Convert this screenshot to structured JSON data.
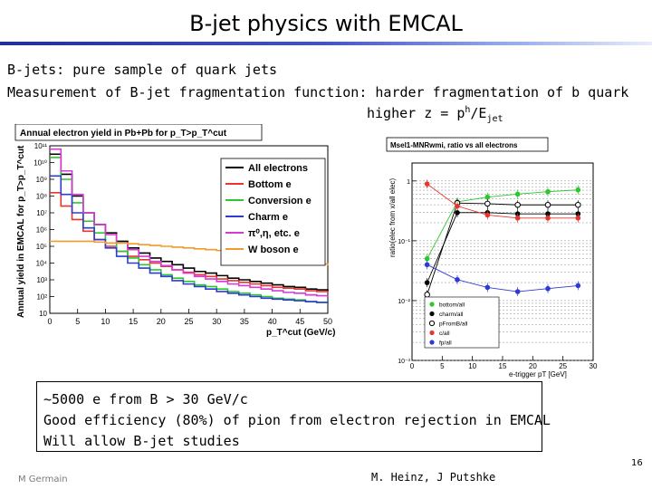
{
  "slide": {
    "title": "B-jet physics with EMCAL",
    "bullets": [
      "B-jets: pure sample of quark jets",
      "Measurement of B-jet fragmentation function: harder fragmentation of b quark"
    ],
    "formula": {
      "prefix": "higher z = p",
      "sup": "h",
      "mid": "/E",
      "sub": "jet"
    },
    "box_lines": [
      "~5000 e from B > 30 GeV/c",
      "Good efficiency (80%) of pion from electron rejection in EMCAL",
      "Will allow B-jet studies"
    ],
    "footer_left": "M Germain",
    "footer_center": "M. Heinz, J Putshke",
    "page_number": "16"
  },
  "chart_data": [
    {
      "type": "line",
      "title": "Annual electron yield in Pb+Pb for p_T>p_T^cut",
      "xlabel": "p_T^cut (GeV/c)",
      "ylabel": "Annual yield in EMCAL for p_T>p_T^cut",
      "xlim": [
        0,
        50
      ],
      "ylim_log10": [
        1,
        11
      ],
      "x_ticks": [
        "0",
        "5",
        "10",
        "15",
        "20",
        "25",
        "30",
        "35",
        "40",
        "45",
        "50"
      ],
      "y_ticks": [
        "10",
        "10²",
        "10³",
        "10⁴",
        "10⁵",
        "10⁶",
        "10⁷",
        "10⁸",
        "10⁹",
        "10¹⁰",
        "10¹¹"
      ],
      "legend_position": "top-right",
      "x": [
        0,
        2,
        4,
        6,
        8,
        10,
        12,
        14,
        16,
        18,
        20,
        22,
        24,
        26,
        28,
        30,
        32,
        34,
        36,
        38,
        40,
        42,
        44,
        46,
        48,
        50
      ],
      "series": [
        {
          "name": "All electrons",
          "color": "#000000",
          "log10_values": [
            10.5,
            9.3,
            8.0,
            7.0,
            6.3,
            5.8,
            5.3,
            4.9,
            4.6,
            4.3,
            4.1,
            3.9,
            3.7,
            3.5,
            3.4,
            3.25,
            3.1,
            3.0,
            2.9,
            2.8,
            2.7,
            2.6,
            2.55,
            2.45,
            2.4,
            2.3
          ]
        },
        {
          "name": "Bottom e",
          "color": "#e8362e",
          "log10_values": [
            8.2,
            7.4,
            6.6,
            5.9,
            5.4,
            5.0,
            4.7,
            4.4,
            4.2,
            4.0,
            3.8,
            3.6,
            3.45,
            3.3,
            3.2,
            3.05,
            2.95,
            2.85,
            2.75,
            2.65,
            2.55,
            2.5,
            2.45,
            2.35,
            2.3,
            2.2
          ]
        },
        {
          "name": "Conversion e",
          "color": "#2ec82e",
          "log10_values": [
            10.3,
            9.0,
            7.6,
            6.5,
            5.8,
            5.2,
            4.7,
            4.3,
            3.9,
            3.6,
            3.3,
            3.1,
            2.9,
            2.7,
            2.6,
            2.45,
            2.3,
            2.2,
            2.1,
            2.0,
            1.9,
            1.85,
            1.8,
            1.7,
            1.65,
            1.6
          ]
        },
        {
          "name": "Charm e",
          "color": "#2f3ad6",
          "log10_values": [
            9.2,
            8.1,
            7.0,
            6.1,
            5.4,
            4.9,
            4.4,
            4.0,
            3.7,
            3.4,
            3.2,
            2.95,
            2.75,
            2.6,
            2.45,
            2.3,
            2.2,
            2.1,
            2.0,
            1.9,
            1.85,
            1.8,
            1.75,
            1.7,
            1.65,
            1.6
          ]
        },
        {
          "name": "π⁰,η, etc. e",
          "color": "#d63ad6",
          "log10_values": [
            10.8,
            9.5,
            8.1,
            7.0,
            6.3,
            5.7,
            5.2,
            4.8,
            4.4,
            4.1,
            3.85,
            3.6,
            3.4,
            3.2,
            3.05,
            2.9,
            2.75,
            2.65,
            2.55,
            2.45,
            2.35,
            2.25,
            2.2,
            2.1,
            2.05,
            2.0
          ]
        },
        {
          "name": "W boson e",
          "color": "#f39a2b",
          "log10_values": [
            5.3,
            5.3,
            5.3,
            5.3,
            5.25,
            5.2,
            5.2,
            5.15,
            5.1,
            5.05,
            5.0,
            4.95,
            4.9,
            4.85,
            4.8,
            4.75,
            4.7,
            4.62,
            4.55,
            4.45,
            4.35,
            4.25,
            4.15,
            4.05,
            3.95,
            3.85
          ]
        }
      ]
    },
    {
      "type": "scatter",
      "title": "Msel1-MNRwmi, ratio vs all electrons",
      "xlabel": "e-trigger pT [GeV]",
      "ylabel": "ratio(elec from x/all elec)",
      "xlim": [
        0,
        30
      ],
      "ylim_log10": [
        -3,
        0.3
      ],
      "x_ticks": [
        "0",
        "5",
        "10",
        "15",
        "20",
        "25",
        "30"
      ],
      "y_ticks": [
        {
          "label": "10⁻³",
          "log10": -3
        },
        {
          "label": "10⁻²",
          "log10": -2
        },
        {
          "label": "10⁻¹",
          "log10": -1
        },
        {
          "label": "1",
          "log10": 0
        }
      ],
      "legend_position": "bottom-center",
      "x": [
        2.5,
        7.5,
        12.5,
        17.5,
        22.5,
        27.5
      ],
      "series": [
        {
          "name": "bottom/all",
          "color": "#2ec82e",
          "marker": "filled",
          "log10_values": [
            -1.3,
            -0.35,
            -0.27,
            -0.22,
            -0.18,
            -0.15
          ]
        },
        {
          "name": "charm/all",
          "color": "#000000",
          "marker": "filled",
          "log10_values": [
            -1.7,
            -0.53,
            -0.53,
            -0.55,
            -0.55,
            -0.55
          ]
        },
        {
          "name": "pFromB/all",
          "color": "#000000",
          "marker": "open",
          "log10_values": [
            -1.9,
            -0.37,
            -0.38,
            -0.4,
            -0.4,
            -0.4
          ]
        },
        {
          "name": "c/all",
          "color": "#e8362e",
          "marker": "filled",
          "log10_values": [
            -0.05,
            -0.42,
            -0.57,
            -0.62,
            -0.62,
            -0.62
          ]
        },
        {
          "name": "fp/all",
          "color": "#2f3ad6",
          "marker": "filled",
          "log10_values": [
            -1.4,
            -1.65,
            -1.78,
            -1.85,
            -1.8,
            -1.75
          ]
        }
      ]
    }
  ]
}
